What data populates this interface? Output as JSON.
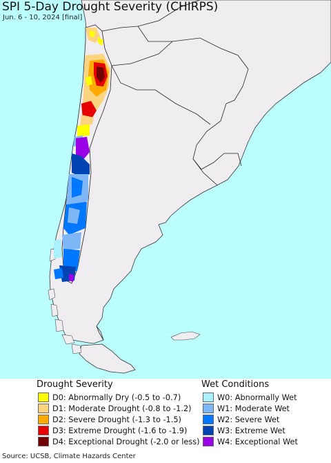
{
  "title": "SPI 5-Day Drought Severity (CHIRPS)",
  "subtitle": "Jun. 6 - 10, 2024 [final]",
  "colors": {
    "ocean": "#bbffff",
    "land": "#f0edf0",
    "border": "#222222"
  },
  "legend": {
    "drought": {
      "heading": "Drought Severity",
      "items": [
        {
          "label": "D0: Abnormally Dry (-0.5 to -0.7)",
          "color": "#ffff00"
        },
        {
          "label": "D1: Moderate Drought (-0.8 to -1.2)",
          "color": "#fcd37f"
        },
        {
          "label": "D2: Severe Drought (-1.3 to -1.5)",
          "color": "#ffaa00"
        },
        {
          "label": "D3: Extreme Drought (-1.6 to -1.9)",
          "color": "#e60000"
        },
        {
          "label": "D4: Exceptional Drought (-2.0 or less)",
          "color": "#730000"
        }
      ]
    },
    "wet": {
      "heading": "Wet Conditions",
      "items": [
        {
          "label": "W0: Abnormally Wet",
          "color": "#aaf0ff"
        },
        {
          "label": "W1: Moderate Wet",
          "color": "#7eb6f6"
        },
        {
          "label": "W2: Severe Wet",
          "color": "#0077ff"
        },
        {
          "label": "W3: Extreme Wet",
          "color": "#0043b2"
        },
        {
          "label": "W4: Exceptional Wet",
          "color": "#9a00e6"
        }
      ]
    }
  },
  "source": "Source: UCSB, Climate Hazards Center"
}
